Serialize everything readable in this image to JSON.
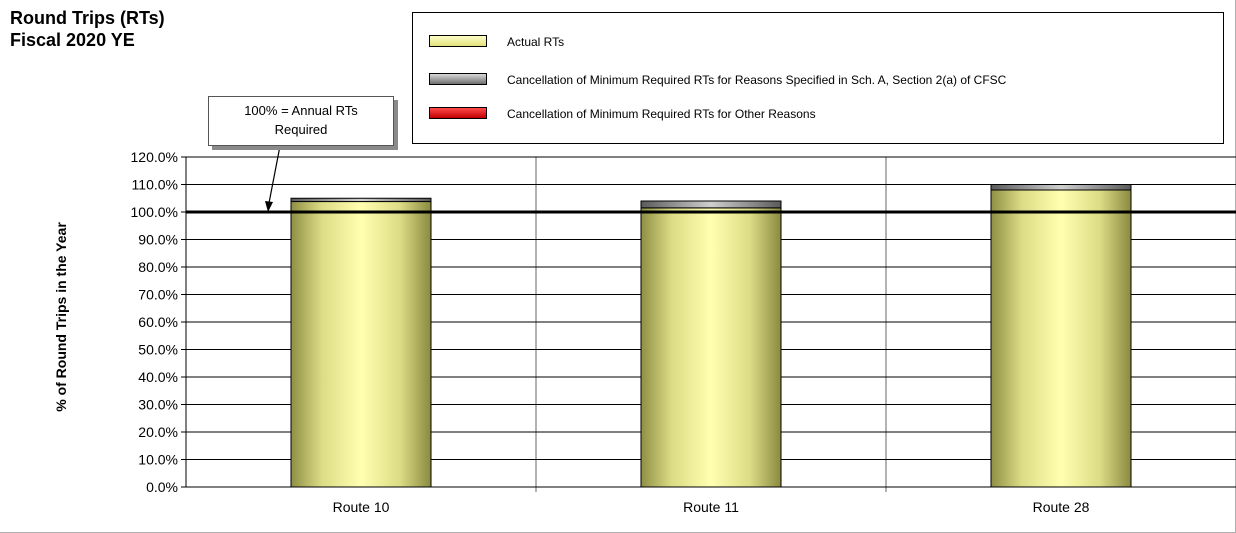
{
  "chart_data": {
    "type": "bar",
    "title": "Round Trips (RTs)",
    "subtitle": "Fiscal 2020 YE",
    "xlabel": "",
    "ylabel": "% of Round Trips in the Year",
    "ylim": [
      0,
      120
    ],
    "y_tick_step": 10,
    "y_tick_labels": [
      "0.0%",
      "10.0%",
      "20.0%",
      "30.0%",
      "40.0%",
      "50.0%",
      "60.0%",
      "70.0%",
      "80.0%",
      "90.0%",
      "100.0%",
      "110.0%",
      "120.0%"
    ],
    "categories": [
      "Route 10",
      "Route 11",
      "Route 28"
    ],
    "stacked": true,
    "series": [
      {
        "name": "Actual RTs",
        "values": [
          103.8,
          101.5,
          108.0
        ],
        "color": "#f4f49a"
      },
      {
        "name": "Cancellation of Minimum Required RTs for Reasons Specified in Sch. A, Section 2(a) of CFSC",
        "values": [
          1.2,
          2.5,
          2.0
        ],
        "color": "#8c8c8c"
      },
      {
        "name": "Cancellation of Minimum Required RTs for Other Reasons",
        "values": [
          0,
          0,
          0
        ],
        "color": "#e00000"
      }
    ],
    "reference_line": {
      "value": 100,
      "color": "#000000"
    },
    "annotation": {
      "text_line1": "100% = Annual RTs",
      "text_line2": "Required"
    },
    "grid": true,
    "legend_position": "top-right"
  }
}
